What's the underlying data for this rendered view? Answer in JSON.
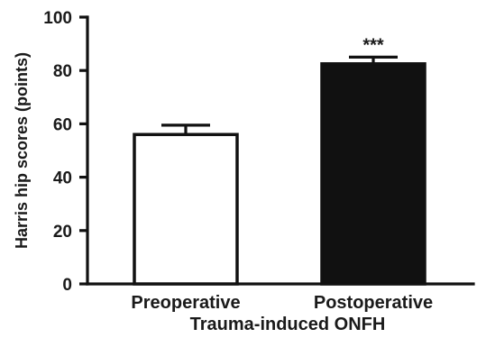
{
  "chart_data": {
    "type": "bar",
    "categories": [
      "Preoperative",
      "Postoperative"
    ],
    "values": [
      56,
      82.5
    ],
    "errors": [
      3.5,
      2.5
    ],
    "annotations": [
      "",
      "***"
    ],
    "xlabel": "Trauma-induced ONFH",
    "ylabel": "Harris hip scores (points)",
    "ylim": [
      0,
      100
    ],
    "yticks": [
      0,
      20,
      40,
      60,
      80,
      100
    ],
    "legend": "none",
    "grid": false,
    "colors": {
      "bar_fills": [
        "#ffffff",
        "#111111"
      ],
      "bar_stroke": "#111111",
      "axis": "#111111"
    }
  }
}
